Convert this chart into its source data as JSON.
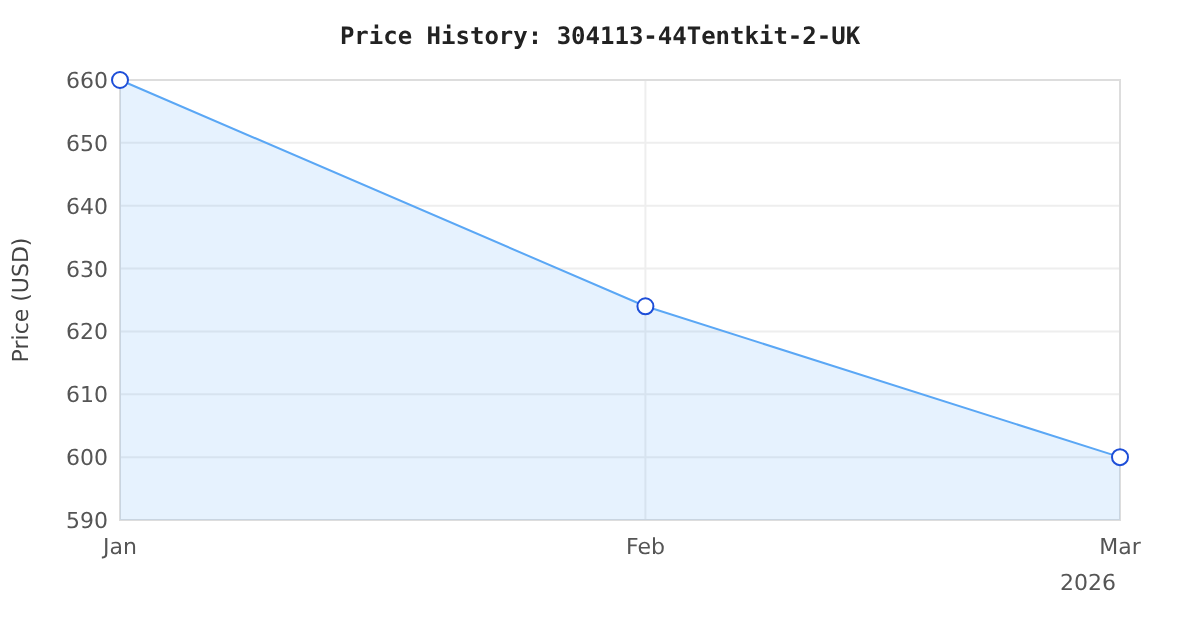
{
  "chart_data": {
    "type": "area",
    "title": "Price History: 304113-44Tentkit-2-UK",
    "ylabel": "Price (USD)",
    "x": [
      "2026-01",
      "2026-02",
      "2026-03"
    ],
    "series": [
      {
        "color": "#5aa7f5",
        "values": [
          660,
          624,
          600
        ]
      }
    ],
    "xlim": [
      "2026-01",
      "2026-03"
    ],
    "xticks": [
      {
        "value": "2026-01",
        "label": "Jan"
      },
      {
        "value": "2026-02",
        "label": "Feb"
      },
      {
        "value": "2026-03",
        "label": "Mar\n2026"
      }
    ],
    "ylim": [
      590,
      660
    ],
    "yticks": [
      590,
      600,
      610,
      620,
      630,
      640,
      650,
      660
    ],
    "grid": true,
    "marker": "circle"
  }
}
